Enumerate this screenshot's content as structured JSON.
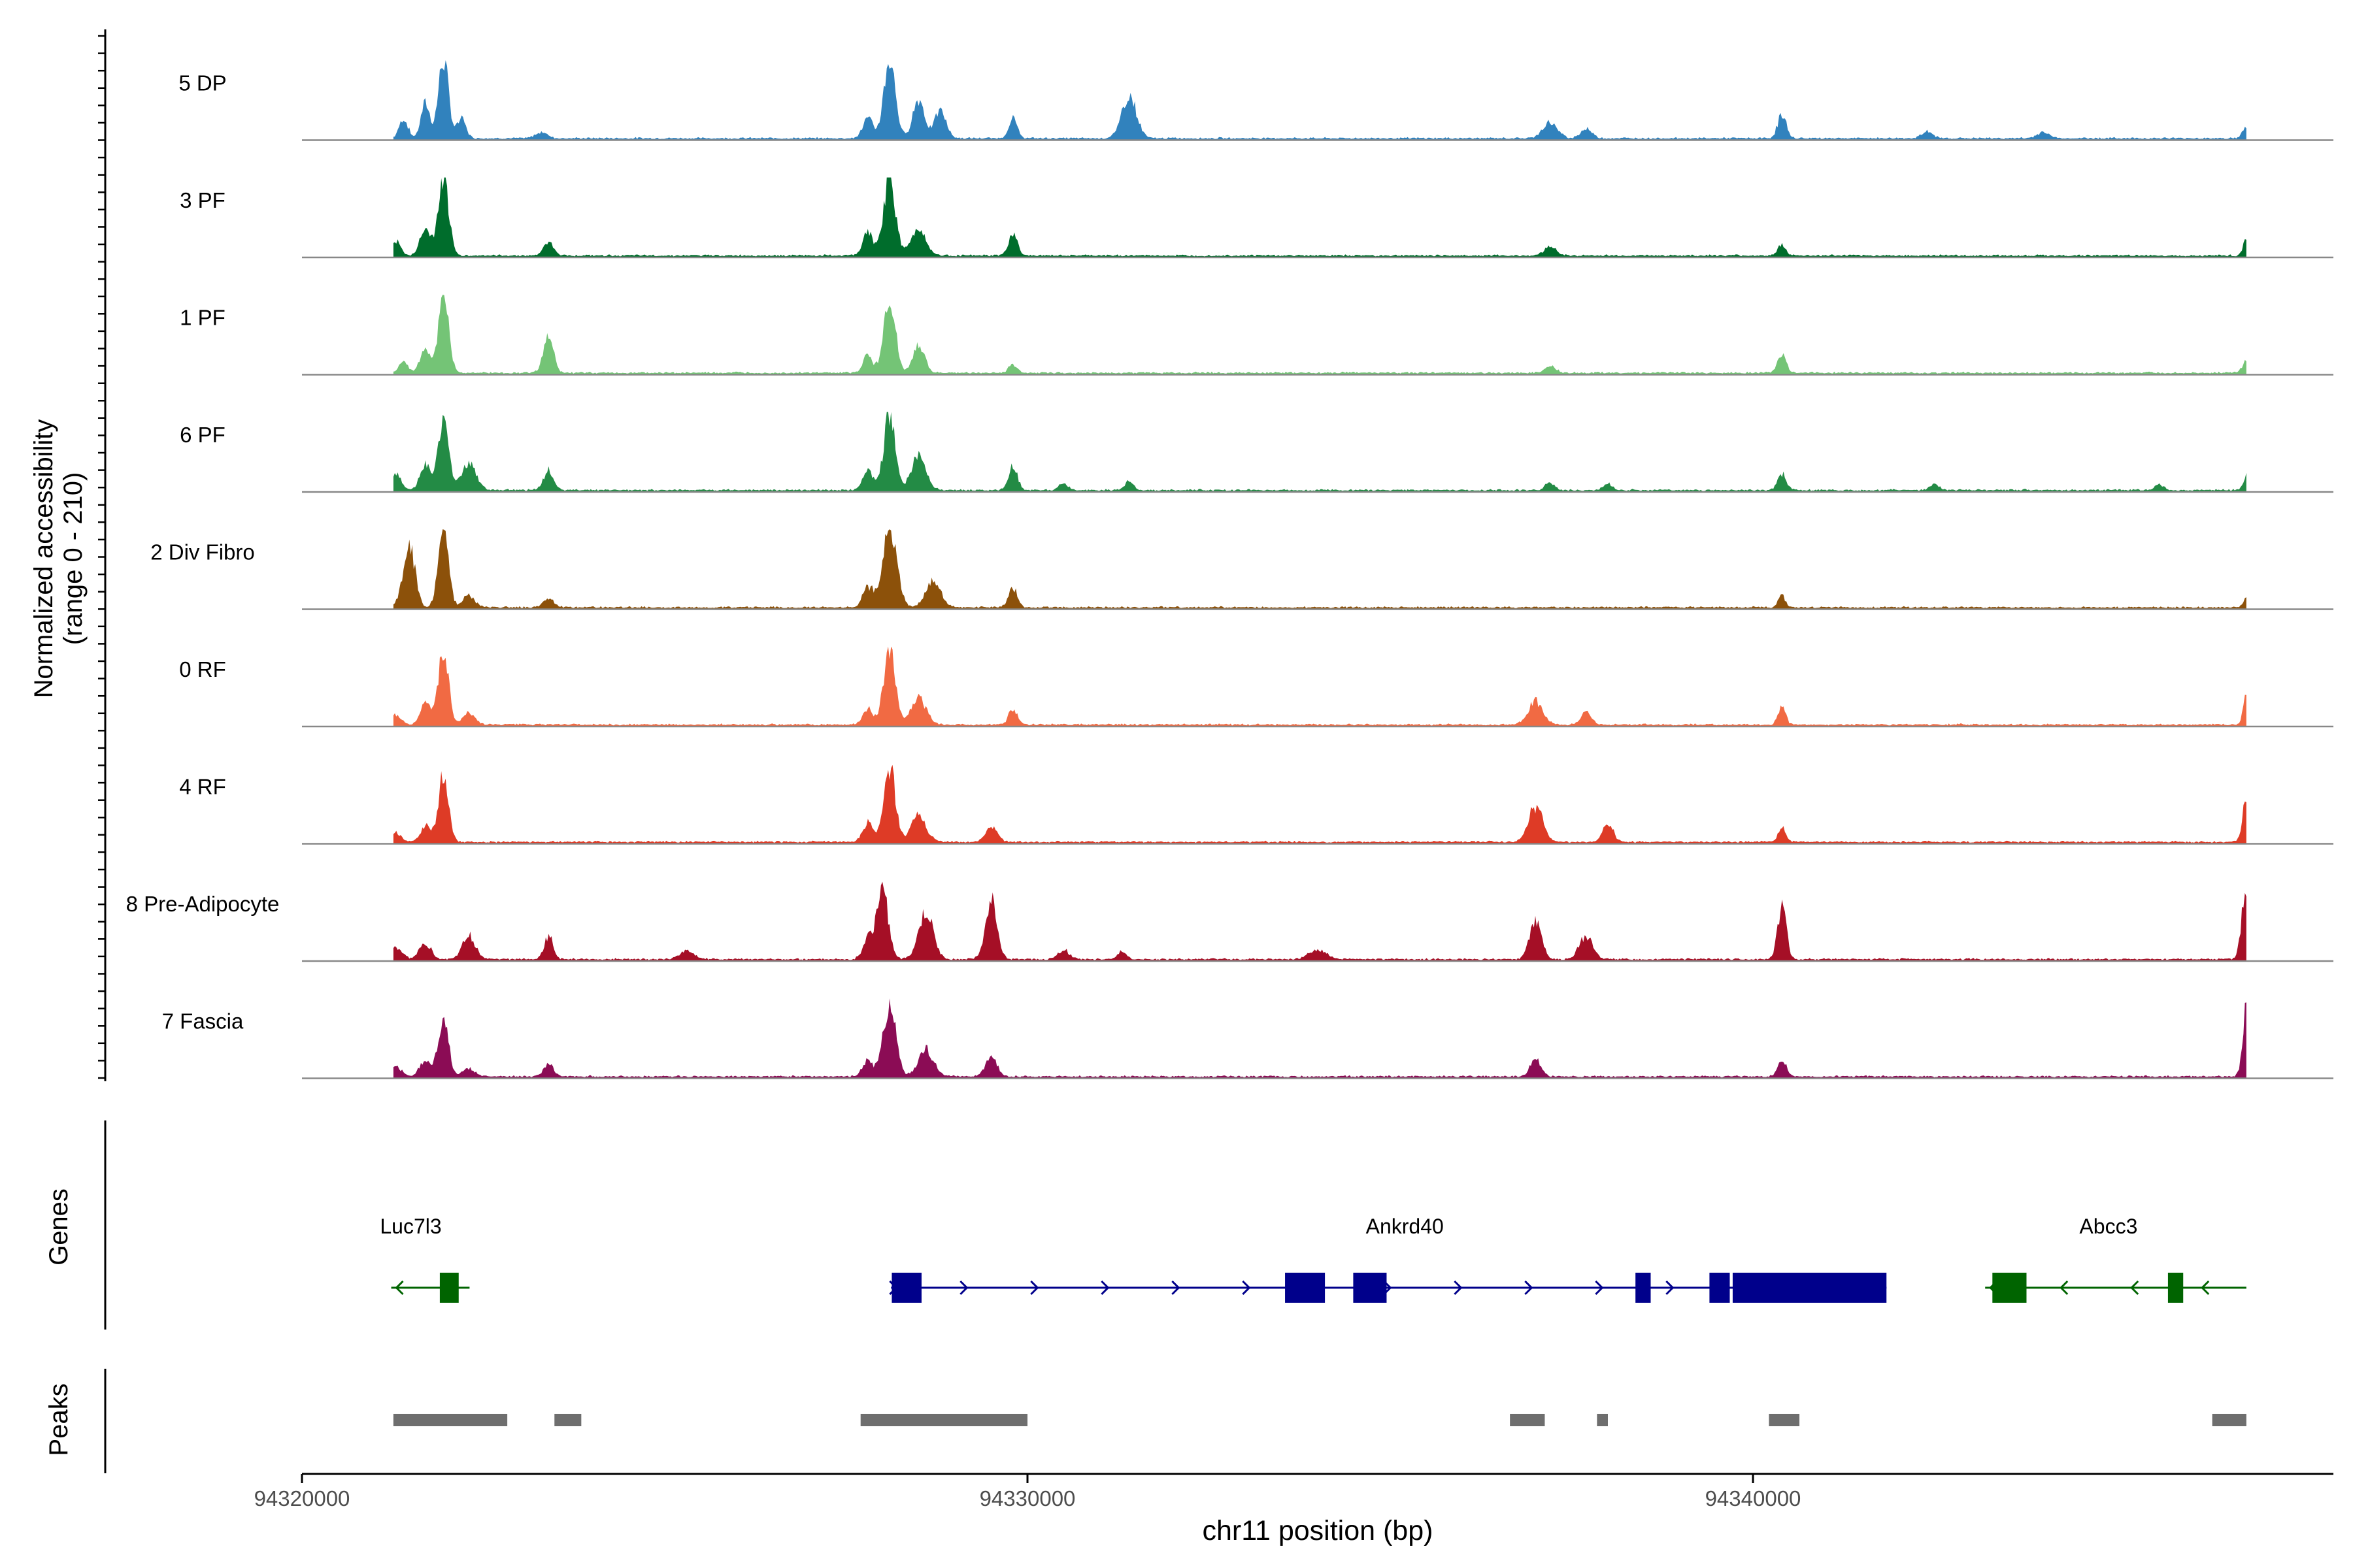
{
  "chart_data": {
    "type": "area",
    "region": {
      "chromosome": "chr11",
      "start": 94320000,
      "end": 94348000
    },
    "xlabel": "chr11 position (bp)",
    "ylabel_line1": "Normalized accessibility",
    "ylabel_line2": "(range 0 - 210)",
    "y_range": [
      0,
      210
    ],
    "x_ticks": [
      94320000,
      94330000,
      94340000
    ],
    "x_tick_labels": [
      "94320000",
      "94330000",
      "94340000"
    ],
    "track_labels": {
      "genes": "Genes",
      "peaks": "Peaks"
    },
    "series": [
      {
        "name": "5 DP",
        "color": "#3182BD",
        "peaks": [
          [
            94321400,
            0.25,
            60
          ],
          [
            94321700,
            0.45,
            60
          ],
          [
            94321950,
            1.0,
            70
          ],
          [
            94322200,
            0.25,
            60
          ],
          [
            94323300,
            0.08,
            80
          ],
          [
            94327800,
            0.25,
            70
          ],
          [
            94328100,
            1.0,
            80
          ],
          [
            94328500,
            0.5,
            80
          ],
          [
            94328800,
            0.35,
            80
          ],
          [
            94329800,
            0.25,
            60
          ],
          [
            94331400,
            0.55,
            100
          ],
          [
            94337200,
            0.2,
            100
          ],
          [
            94337700,
            0.12,
            80
          ],
          [
            94340400,
            0.3,
            60
          ],
          [
            94342400,
            0.08,
            80
          ],
          [
            94344000,
            0.08,
            80
          ],
          [
            94346800,
            0.15,
            50
          ]
        ]
      },
      {
        "name": "3 PF",
        "color": "#006D2C",
        "peaks": [
          [
            94321300,
            0.18,
            60
          ],
          [
            94321700,
            0.35,
            70
          ],
          [
            94321950,
            1.0,
            70
          ],
          [
            94323400,
            0.18,
            70
          ],
          [
            94327800,
            0.3,
            70
          ],
          [
            94328100,
            1.0,
            80
          ],
          [
            94328500,
            0.35,
            100
          ],
          [
            94329800,
            0.3,
            60
          ],
          [
            94337200,
            0.12,
            80
          ],
          [
            94340400,
            0.15,
            50
          ],
          [
            94346800,
            0.25,
            40
          ]
        ]
      },
      {
        "name": "1 PF",
        "color": "#74C476",
        "peaks": [
          [
            94321400,
            0.15,
            60
          ],
          [
            94321700,
            0.3,
            70
          ],
          [
            94321950,
            1.0,
            70
          ],
          [
            94323400,
            0.45,
            70
          ],
          [
            94327800,
            0.25,
            60
          ],
          [
            94328100,
            1.0,
            80
          ],
          [
            94328500,
            0.35,
            80
          ],
          [
            94329800,
            0.1,
            60
          ],
          [
            94337200,
            0.08,
            80
          ],
          [
            94340400,
            0.25,
            60
          ],
          [
            94346800,
            0.15,
            50
          ]
        ]
      },
      {
        "name": "6 PF",
        "color": "#238B45",
        "peaks": [
          [
            94321300,
            0.2,
            70
          ],
          [
            94321700,
            0.35,
            70
          ],
          [
            94321950,
            0.9,
            70
          ],
          [
            94322300,
            0.35,
            100
          ],
          [
            94323400,
            0.25,
            70
          ],
          [
            94327800,
            0.25,
            70
          ],
          [
            94328100,
            0.95,
            80
          ],
          [
            94328500,
            0.45,
            100
          ],
          [
            94329800,
            0.3,
            60
          ],
          [
            94330500,
            0.1,
            60
          ],
          [
            94331400,
            0.12,
            60
          ],
          [
            94337200,
            0.1,
            60
          ],
          [
            94338000,
            0.08,
            60
          ],
          [
            94340400,
            0.2,
            60
          ],
          [
            94342500,
            0.08,
            60
          ],
          [
            94345600,
            0.08,
            60
          ],
          [
            94346800,
            0.2,
            40
          ]
        ]
      },
      {
        "name": "2 Div Fibro",
        "color": "#8C510A",
        "peaks": [
          [
            94321400,
            0.25,
            70
          ],
          [
            94321500,
            0.65,
            70
          ],
          [
            94321950,
            1.0,
            70
          ],
          [
            94322300,
            0.15,
            80
          ],
          [
            94323400,
            0.12,
            70
          ],
          [
            94327800,
            0.25,
            70
          ],
          [
            94328100,
            1.0,
            100
          ],
          [
            94328700,
            0.35,
            100
          ],
          [
            94329800,
            0.25,
            60
          ],
          [
            94340400,
            0.15,
            50
          ],
          [
            94346800,
            0.12,
            40
          ]
        ]
      },
      {
        "name": "0 RF",
        "color": "#F16A43",
        "peaks": [
          [
            94321300,
            0.12,
            70
          ],
          [
            94321700,
            0.3,
            70
          ],
          [
            94321950,
            1.0,
            70
          ],
          [
            94322300,
            0.15,
            80
          ],
          [
            94327800,
            0.2,
            70
          ],
          [
            94328100,
            1.0,
            80
          ],
          [
            94328500,
            0.35,
            100
          ],
          [
            94329800,
            0.2,
            60
          ],
          [
            94337000,
            0.3,
            100
          ],
          [
            94337700,
            0.15,
            70
          ],
          [
            94340400,
            0.25,
            50
          ],
          [
            94346800,
            0.45,
            40
          ]
        ]
      },
      {
        "name": "4 RF",
        "color": "#DE3B26",
        "peaks": [
          [
            94321300,
            0.12,
            70
          ],
          [
            94321700,
            0.2,
            70
          ],
          [
            94321950,
            0.85,
            70
          ],
          [
            94327800,
            0.25,
            70
          ],
          [
            94328100,
            0.95,
            80
          ],
          [
            94328500,
            0.35,
            100
          ],
          [
            94329500,
            0.2,
            80
          ],
          [
            94337000,
            0.45,
            100
          ],
          [
            94338000,
            0.25,
            70
          ],
          [
            94340400,
            0.2,
            50
          ],
          [
            94346800,
            0.55,
            50
          ]
        ]
      },
      {
        "name": "8 Pre-Adipocyte",
        "color": "#A50F26",
        "peaks": [
          [
            94321300,
            0.15,
            80
          ],
          [
            94321700,
            0.2,
            80
          ],
          [
            94322300,
            0.3,
            90
          ],
          [
            94323400,
            0.3,
            60
          ],
          [
            94325300,
            0.1,
            100
          ],
          [
            94327800,
            0.25,
            70
          ],
          [
            94328000,
            0.9,
            80
          ],
          [
            94328600,
            0.6,
            100
          ],
          [
            94329500,
            0.75,
            80
          ],
          [
            94330500,
            0.12,
            80
          ],
          [
            94331300,
            0.1,
            60
          ],
          [
            94334000,
            0.12,
            120
          ],
          [
            94337000,
            0.5,
            80
          ],
          [
            94337700,
            0.3,
            90
          ],
          [
            94340400,
            0.65,
            60
          ],
          [
            94346800,
            0.95,
            60
          ]
        ]
      },
      {
        "name": "7 Fascia",
        "color": "#8B0C55",
        "peaks": [
          [
            94321300,
            0.12,
            80
          ],
          [
            94321700,
            0.2,
            80
          ],
          [
            94321950,
            0.75,
            70
          ],
          [
            94322300,
            0.1,
            80
          ],
          [
            94323400,
            0.15,
            70
          ],
          [
            94327800,
            0.2,
            70
          ],
          [
            94328100,
            0.9,
            90
          ],
          [
            94328600,
            0.35,
            100
          ],
          [
            94329500,
            0.25,
            80
          ],
          [
            94337000,
            0.25,
            70
          ],
          [
            94340400,
            0.2,
            60
          ],
          [
            94346800,
            0.9,
            50
          ]
        ]
      }
    ],
    "genes": [
      {
        "name": "Luc7l3",
        "strand": "-",
        "color": "#006400",
        "start": 94321230,
        "end": 94322310,
        "label_pos": 94321500,
        "exons": [
          [
            94321900,
            94322160
          ]
        ]
      },
      {
        "name": "Ankrd40",
        "strand": "+",
        "color": "#00008B",
        "start": 94328120,
        "end": 94341840,
        "label_pos": 94335200,
        "exons": [
          [
            94328130,
            94328540
          ],
          [
            94333550,
            94334100
          ],
          [
            94334490,
            94334950
          ],
          [
            94338380,
            94338590
          ],
          [
            94339400,
            94339680
          ],
          [
            94339720,
            94341840
          ]
        ]
      },
      {
        "name": "Abcc3",
        "strand": "-",
        "color": "#006400",
        "start": 94343200,
        "end": 94346800,
        "label_pos": 94344900,
        "exons": [
          [
            94343300,
            94343770
          ],
          [
            94345720,
            94345930
          ]
        ]
      }
    ],
    "peaks_track": [
      [
        94321260,
        94322830
      ],
      [
        94323480,
        94323850
      ],
      [
        94327700,
        94330000
      ],
      [
        94336650,
        94337130
      ],
      [
        94337850,
        94338000
      ],
      [
        94340220,
        94340640
      ],
      [
        94346330,
        94346800
      ]
    ]
  }
}
